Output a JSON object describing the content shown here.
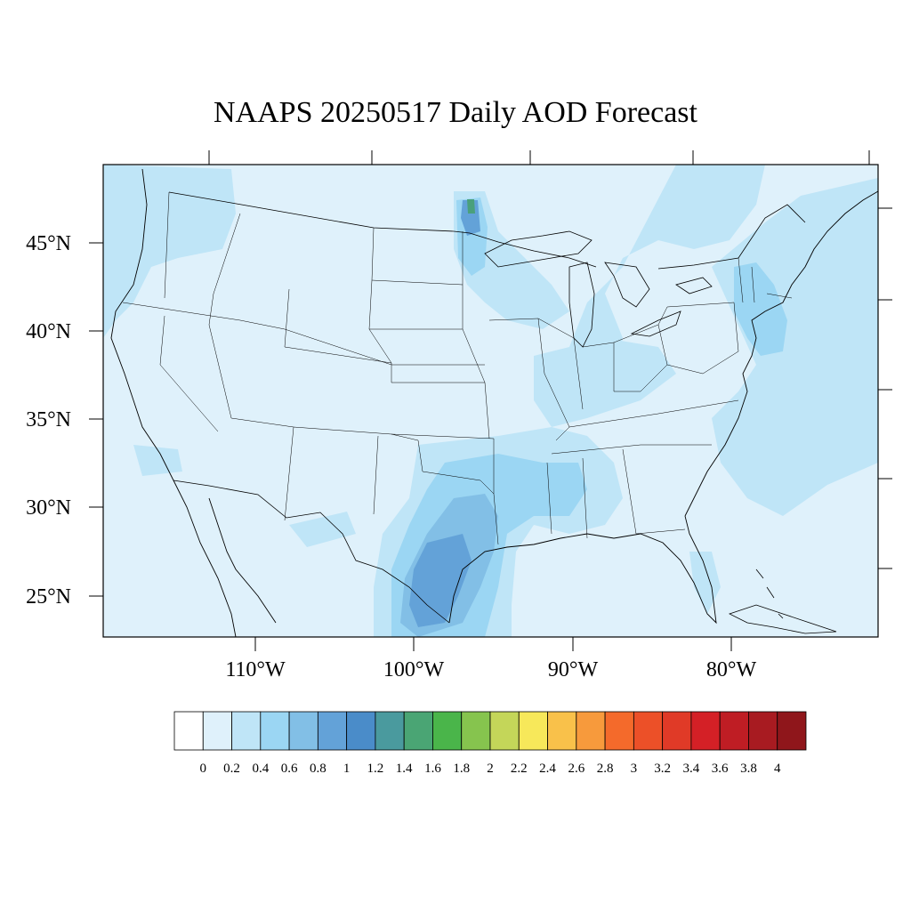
{
  "title": "NAAPS 20250517 Daily AOD Forecast",
  "map": {
    "projection": "cylindrical-equidistant",
    "region": "Continental United States",
    "lat_labels": [
      "45°N",
      "40°N",
      "35°N",
      "30°N",
      "25°N"
    ],
    "lon_labels": [
      "110°W",
      "100°W",
      "90°W",
      "80°W"
    ],
    "background_value_color": "#dff1fb",
    "features": [
      "coastlines",
      "country-borders",
      "state-borders",
      "great-lakes"
    ]
  },
  "aod_plumes": [
    {
      "region": "northeastern Minnesota",
      "max_level": "1.6",
      "color": "#4aa07c"
    },
    {
      "region": "south Texas",
      "max_level": "1.0",
      "color": "#63a2d8"
    },
    {
      "region": "Gulf coast / lower Mississippi valley",
      "max_level": "0.6",
      "color": "#9bd6f3"
    },
    {
      "region": "mid-Atlantic / northeast coast",
      "max_level": "0.6",
      "color": "#9bd6f3"
    },
    {
      "region": "Atlantic offshore",
      "max_level": "0.4",
      "color": "#bfe5f7"
    }
  ],
  "colorbar": {
    "levels": [
      "0",
      "0.2",
      "0.4",
      "0.6",
      "0.8",
      "1",
      "1.2",
      "1.4",
      "1.6",
      "1.8",
      "2",
      "2.2",
      "2.4",
      "2.6",
      "2.8",
      "3",
      "3.2",
      "3.4",
      "3.6",
      "3.8",
      "4"
    ],
    "colors": [
      "#ffffff",
      "#dff1fb",
      "#bfe5f7",
      "#9bd6f3",
      "#82bfe6",
      "#63a2d8",
      "#4a8cc9",
      "#4a9a9e",
      "#4aa574",
      "#4ab54a",
      "#86c44e",
      "#c4d659",
      "#f7e85a",
      "#f9c14a",
      "#f79a3c",
      "#f46a2b",
      "#ec5028",
      "#e03a27",
      "#d42026",
      "#bf1d24",
      "#a81b21",
      "#8f161b"
    ]
  }
}
